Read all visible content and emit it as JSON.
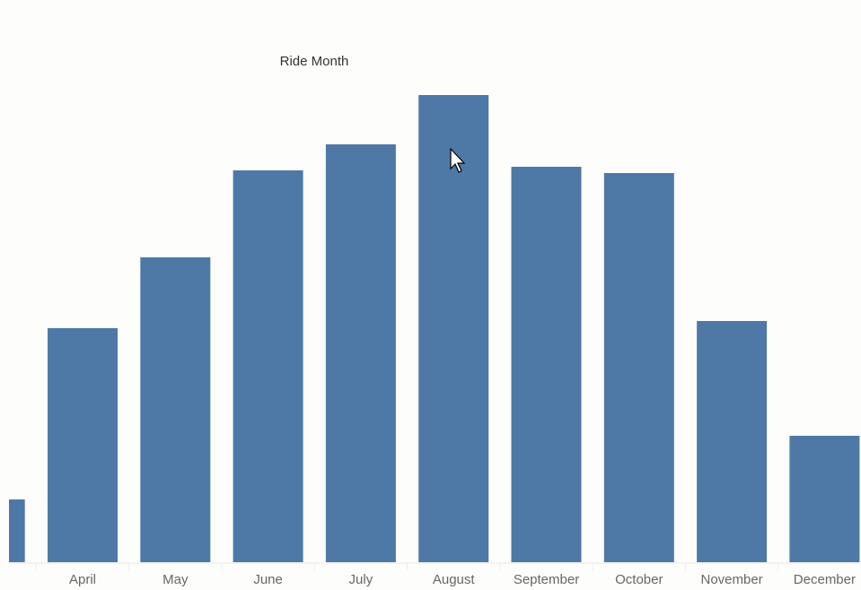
{
  "chart_data": {
    "type": "bar",
    "title": "Ride Month",
    "categories": [
      null,
      "April",
      "May",
      "June",
      "July",
      "August",
      "September",
      "October",
      "November",
      "December"
    ],
    "values": [
      70,
      261,
      340,
      437,
      466,
      521,
      441,
      434,
      269,
      141
    ],
    "color": "#4e79a7"
  }
}
